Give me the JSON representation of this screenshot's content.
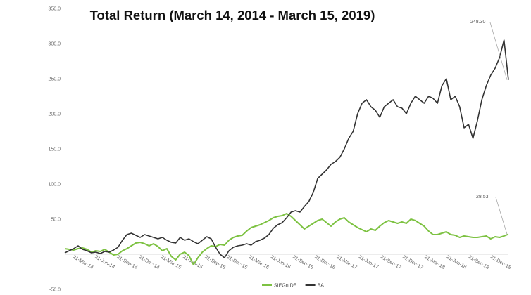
{
  "chart_data": {
    "type": "line",
    "title": "Total Return (March 14, 2014 - March 15, 2019)",
    "xlabel": "",
    "ylabel": "",
    "ylim": [
      -50,
      350
    ],
    "yticks": [
      -50,
      0,
      50,
      100,
      150,
      200,
      250,
      300,
      350
    ],
    "ytick_labels": [
      "-50.0",
      "",
      "50.0",
      "100.0",
      "150.0",
      "200.0",
      "250.0",
      "300.0",
      "350.0"
    ],
    "x_tick_labels": [
      "21-Mar-14",
      "21-Jun-14",
      "21-Sep-14",
      "21-Dec-14",
      "21-Mar-15",
      "21-Jun-15",
      "21-Sep-15",
      "21-Dec-15",
      "21-Mar-16",
      "21-Jun-16",
      "21-Sep-16",
      "21-Dec-16",
      "21-Mar-17",
      "21-Jun-17",
      "21-Sep-17",
      "21-Dec-17",
      "21-Mar-18",
      "21-Jun-18",
      "21-Sep-18",
      "21-Dec-18"
    ],
    "grid": false,
    "legend_position": "bottom",
    "series": [
      {
        "name": "SIEGn.DE",
        "color": "#7dc242",
        "x": [
          0,
          0.05,
          0.1,
          0.15,
          0.2,
          0.25,
          0.3,
          0.35,
          0.4,
          0.45,
          0.5,
          0.55,
          0.6,
          0.65,
          0.7,
          0.75,
          0.8,
          0.85,
          0.9,
          0.95,
          1.0,
          1.05,
          1.1,
          1.15,
          1.2,
          1.25,
          1.3,
          1.35,
          1.4,
          1.45,
          1.5,
          1.55,
          1.6,
          1.65,
          1.7,
          1.75,
          1.8,
          1.85,
          1.9,
          1.95,
          2.0,
          2.05,
          2.1,
          2.15,
          2.2,
          2.25,
          2.3,
          2.35,
          2.4,
          2.45,
          2.5,
          2.55,
          2.6,
          2.65,
          2.7,
          2.75,
          2.8,
          2.85,
          2.9,
          2.95,
          3.0,
          3.05,
          3.1,
          3.15,
          3.2,
          3.25,
          3.3,
          3.35,
          3.4,
          3.45,
          3.5,
          3.55,
          3.6,
          3.65,
          3.7,
          3.75,
          3.8,
          3.85,
          3.9,
          3.95,
          4.0,
          4.05,
          4.1,
          4.15,
          4.2,
          4.25,
          4.3,
          4.35,
          4.4,
          4.45,
          4.5,
          4.55,
          4.6,
          4.65,
          4.7,
          4.75,
          4.8,
          4.85,
          4.9,
          4.95,
          5.0
        ],
        "values": [
          8,
          7,
          6,
          8,
          9,
          7,
          3,
          5,
          4,
          7,
          3,
          -1,
          0,
          5,
          8,
          12,
          16,
          17,
          15,
          12,
          15,
          11,
          5,
          8,
          -3,
          -8,
          0,
          3,
          -2,
          -15,
          -5,
          3,
          8,
          12,
          11,
          14,
          13,
          20,
          24,
          26,
          27,
          33,
          38,
          40,
          42,
          45,
          48,
          52,
          54,
          55,
          58,
          54,
          48,
          42,
          36,
          40,
          44,
          48,
          50,
          45,
          40,
          46,
          50,
          52,
          46,
          42,
          38,
          35,
          32,
          36,
          34,
          40,
          45,
          48,
          46,
          44,
          46,
          44,
          50,
          48,
          44,
          40,
          33,
          28,
          28,
          30,
          32,
          28,
          27,
          24,
          26,
          25,
          24,
          24,
          25,
          26,
          22,
          25,
          24,
          26,
          28.53
        ]
      },
      {
        "name": "BA",
        "color": "#333333",
        "x": [
          0,
          0.05,
          0.1,
          0.15,
          0.2,
          0.25,
          0.3,
          0.35,
          0.4,
          0.45,
          0.5,
          0.55,
          0.6,
          0.65,
          0.7,
          0.75,
          0.8,
          0.85,
          0.9,
          0.95,
          1.0,
          1.05,
          1.1,
          1.15,
          1.2,
          1.25,
          1.3,
          1.35,
          1.4,
          1.45,
          1.5,
          1.55,
          1.6,
          1.65,
          1.7,
          1.75,
          1.8,
          1.85,
          1.9,
          1.95,
          2.0,
          2.05,
          2.1,
          2.15,
          2.2,
          2.25,
          2.3,
          2.35,
          2.4,
          2.45,
          2.5,
          2.55,
          2.6,
          2.65,
          2.7,
          2.75,
          2.8,
          2.85,
          2.9,
          2.95,
          3.0,
          3.05,
          3.1,
          3.15,
          3.2,
          3.25,
          3.3,
          3.35,
          3.4,
          3.45,
          3.5,
          3.55,
          3.6,
          3.65,
          3.7,
          3.75,
          3.8,
          3.85,
          3.9,
          3.95,
          4.0,
          4.05,
          4.1,
          4.15,
          4.2,
          4.25,
          4.3,
          4.35,
          4.4,
          4.45,
          4.5,
          4.55,
          4.6,
          4.65,
          4.7,
          4.75,
          4.8,
          4.85,
          4.9,
          4.95,
          5.0
        ],
        "values": [
          2,
          5,
          8,
          12,
          7,
          5,
          2,
          3,
          1,
          4,
          3,
          6,
          10,
          20,
          28,
          30,
          27,
          24,
          28,
          26,
          24,
          22,
          24,
          20,
          17,
          16,
          24,
          20,
          22,
          18,
          15,
          20,
          25,
          22,
          10,
          0,
          -5,
          5,
          10,
          12,
          13,
          15,
          13,
          18,
          20,
          23,
          28,
          37,
          42,
          45,
          52,
          60,
          62,
          60,
          68,
          75,
          88,
          108,
          114,
          120,
          128,
          132,
          138,
          150,
          165,
          175,
          200,
          215,
          220,
          210,
          205,
          195,
          210,
          215,
          220,
          210,
          208,
          200,
          215,
          225,
          220,
          215,
          225,
          222,
          215,
          240,
          250,
          220,
          225,
          210,
          180,
          185,
          165,
          190,
          220,
          240,
          255,
          265,
          280,
          305,
          248.3
        ]
      }
    ],
    "annotations": [
      {
        "label": "248.30",
        "series": "BA",
        "x": 5.0,
        "y": 248.3
      },
      {
        "label": "28.53",
        "series": "SIEGn.DE",
        "x": 5.0,
        "y": 28.53
      }
    ]
  }
}
